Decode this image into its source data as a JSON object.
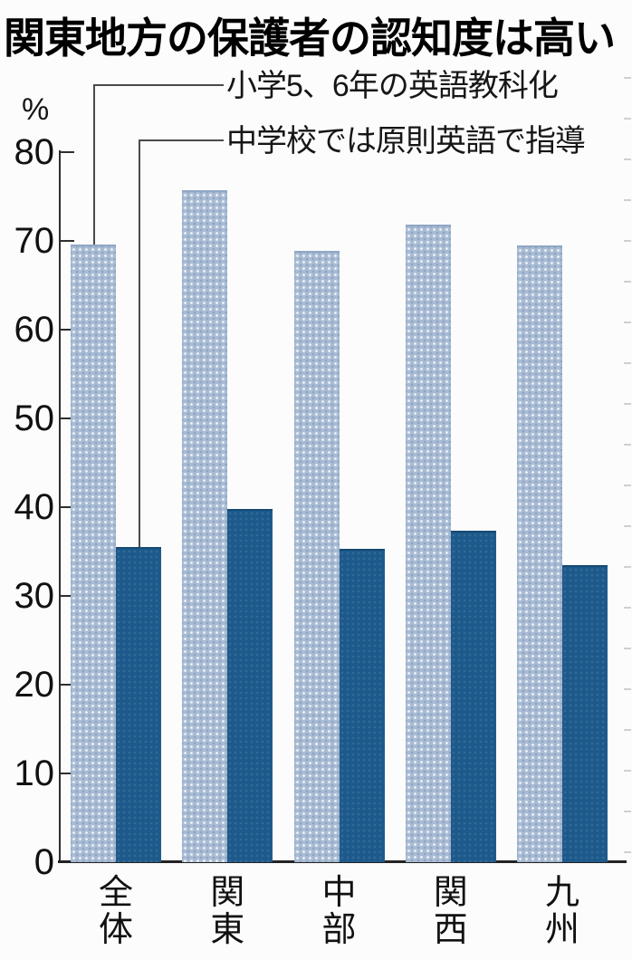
{
  "title": "関東地方の保護者の認知度は高い",
  "unit_label": "%",
  "legend": {
    "series1_label": "小学5、6年の英語教科化",
    "series2_label": "中学校では原則英語で指導"
  },
  "y_axis": {
    "unit": "%",
    "tick_labels": [
      "80",
      "70",
      "60",
      "50",
      "40",
      "30",
      "20",
      "10",
      "0"
    ]
  },
  "chart_data": {
    "type": "bar",
    "title": "関東地方の保護者の認知度は高い",
    "categories": [
      "全体",
      "関東",
      "中部",
      "関西",
      "九州"
    ],
    "series": [
      {
        "name": "小学5、6年の英語教科化",
        "color": "#a9bcd4",
        "values": [
          69.6,
          75.7,
          68.9,
          71.8,
          69.5
        ]
      },
      {
        "name": "中学校では原則英語で指導",
        "color": "#1d5a8b",
        "values": [
          35.5,
          39.8,
          35.3,
          37.3,
          33.5
        ]
      }
    ],
    "xlabel": "",
    "ylabel": "%",
    "ylim": [
      0,
      80
    ],
    "ytick_interval": 10,
    "grid": false,
    "legend_position": "top with leader lines pointing to first category bars"
  },
  "colors": {
    "light_bar": "#a9bcd4",
    "dark_bar": "#1d5a8b",
    "axis": "#2e2e2e",
    "text": "#111111",
    "background": "#fcfcfc"
  }
}
